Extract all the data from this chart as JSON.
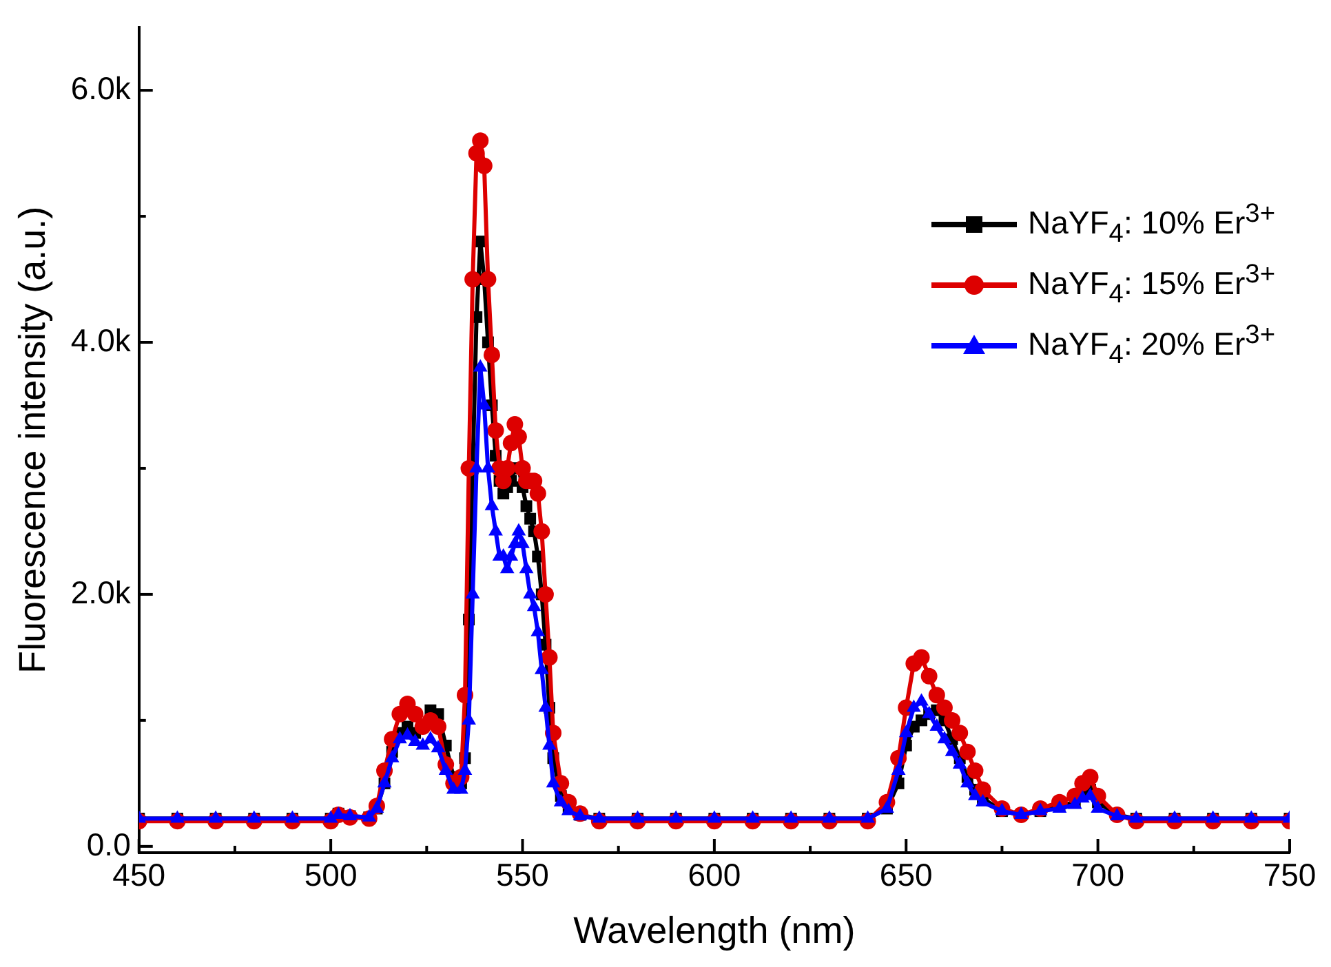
{
  "chart_data": {
    "type": "line",
    "xlabel": "Wavelength (nm)",
    "ylabel": "Fluorescence intensity (a.u.)",
    "x": [
      450,
      460,
      470,
      480,
      490,
      500,
      502,
      505,
      510,
      512,
      514,
      516,
      518,
      520,
      522,
      524,
      526,
      528,
      530,
      532,
      534,
      535,
      536,
      537,
      538,
      539,
      540,
      541,
      542,
      543,
      544,
      545,
      546,
      547,
      548,
      549,
      550,
      551,
      552,
      553,
      554,
      555,
      556,
      557,
      558,
      560,
      562,
      565,
      570,
      580,
      590,
      600,
      610,
      620,
      630,
      640,
      645,
      648,
      650,
      652,
      654,
      656,
      658,
      660,
      662,
      664,
      666,
      668,
      670,
      675,
      680,
      685,
      690,
      694,
      696,
      698,
      700,
      705,
      710,
      720,
      730,
      740,
      750
    ],
    "series": [
      {
        "name": "NaYF$_{4}$: 10% Er$^{3+}$",
        "color": "#000000",
        "marker": "square",
        "values": [
          220,
          220,
          220,
          220,
          220,
          220,
          260,
          240,
          230,
          300,
          500,
          750,
          900,
          950,
          900,
          950,
          1080,
          1050,
          800,
          550,
          500,
          700,
          1800,
          3000,
          4200,
          4800,
          4500,
          4000,
          3500,
          3100,
          2900,
          2800,
          2850,
          2900,
          3000,
          3000,
          2850,
          2700,
          2600,
          2500,
          2300,
          2000,
          1600,
          1100,
          700,
          400,
          300,
          250,
          220,
          220,
          220,
          220,
          220,
          220,
          220,
          220,
          300,
          500,
          800,
          950,
          1000,
          1050,
          1080,
          1000,
          850,
          700,
          550,
          450,
          380,
          280,
          250,
          280,
          320,
          350,
          420,
          450,
          350,
          250,
          220,
          220,
          220,
          220,
          220
        ]
      },
      {
        "name": "NaYF$_{4}$: 15% Er$^{3+}$",
        "color": "#dd0000",
        "marker": "circle",
        "values": [
          200,
          200,
          200,
          200,
          200,
          200,
          250,
          230,
          220,
          320,
          600,
          850,
          1050,
          1130,
          1050,
          950,
          1000,
          950,
          650,
          500,
          550,
          1200,
          3000,
          4500,
          5500,
          5600,
          5400,
          4500,
          3900,
          3300,
          3000,
          2900,
          3000,
          3200,
          3350,
          3250,
          3000,
          2900,
          2900,
          2900,
          2800,
          2500,
          2000,
          1500,
          900,
          500,
          350,
          260,
          200,
          200,
          200,
          200,
          200,
          200,
          200,
          200,
          350,
          700,
          1100,
          1450,
          1500,
          1350,
          1200,
          1100,
          1000,
          900,
          750,
          600,
          450,
          300,
          250,
          300,
          350,
          400,
          500,
          550,
          400,
          250,
          200,
          200,
          200,
          200,
          200
        ]
      },
      {
        "name": "NaYF$_{4}$: 20% Er$^{3+}$",
        "color": "#0000ff",
        "marker": "triangle",
        "values": [
          220,
          220,
          220,
          220,
          220,
          220,
          250,
          240,
          230,
          300,
          500,
          700,
          850,
          880,
          830,
          800,
          850,
          780,
          600,
          450,
          450,
          600,
          1000,
          2000,
          3000,
          3800,
          3500,
          3000,
          2700,
          2500,
          2300,
          2300,
          2200,
          2300,
          2400,
          2500,
          2400,
          2200,
          2000,
          1900,
          1700,
          1400,
          1100,
          800,
          500,
          350,
          280,
          240,
          220,
          220,
          220,
          220,
          220,
          220,
          220,
          220,
          300,
          600,
          900,
          1100,
          1150,
          1050,
          950,
          850,
          750,
          650,
          500,
          400,
          350,
          280,
          250,
          280,
          300,
          330,
          380,
          400,
          300,
          240,
          220,
          220,
          220,
          220,
          220
        ]
      }
    ],
    "xlim": [
      450,
      750
    ],
    "xticks": [
      450,
      {
        "value": 475,
        "label": null
      },
      500,
      {
        "value": 525,
        "label": null
      },
      550,
      {
        "value": 575,
        "label": null
      },
      600,
      {
        "value": 625,
        "label": null
      },
      650,
      {
        "value": 675,
        "label": null
      },
      700,
      {
        "value": 725,
        "label": null
      },
      750
    ],
    "ylim": [
      -50,
      6500
    ],
    "yticks": [
      {
        "value": 0,
        "label": "0.0"
      },
      {
        "value": 1000,
        "label": null
      },
      {
        "value": 2000,
        "label": "2.0k"
      },
      {
        "value": 3000,
        "label": null
      },
      {
        "value": 4000,
        "label": "4.0k"
      },
      {
        "value": 5000,
        "label": null
      },
      {
        "value": 6000,
        "label": "6.0k"
      }
    ],
    "grid": false,
    "legend": "top right",
    "line_style": "solid"
  }
}
